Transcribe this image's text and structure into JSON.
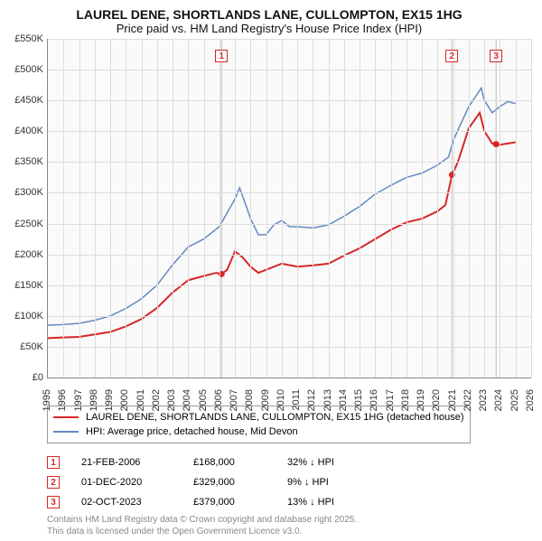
{
  "title": {
    "line1": "LAUREL DENE, SHORTLANDS LANE, CULLOMPTON, EX15 1HG",
    "line2": "Price paid vs. HM Land Registry's House Price Index (HPI)",
    "fontsize_line1": 14,
    "fontsize_line2": 13
  },
  "chart": {
    "type": "line",
    "background_color": "#fafafa",
    "grid_color": "#dddddd",
    "axis_color": "#888888",
    "xlim": [
      1995,
      2026
    ],
    "ylim": [
      0,
      550
    ],
    "x_ticks": [
      1995,
      1996,
      1997,
      1998,
      1999,
      2000,
      2001,
      2002,
      2003,
      2004,
      2005,
      2006,
      2007,
      2008,
      2009,
      2010,
      2011,
      2012,
      2013,
      2014,
      2015,
      2016,
      2017,
      2018,
      2019,
      2020,
      2021,
      2022,
      2023,
      2024,
      2025,
      2026
    ],
    "y_ticks": [
      0,
      50,
      100,
      150,
      200,
      250,
      300,
      350,
      400,
      450,
      500,
      550
    ],
    "y_tick_labels": [
      "£0",
      "£50K",
      "£100K",
      "£150K",
      "£200K",
      "£250K",
      "£300K",
      "£350K",
      "£400K",
      "£450K",
      "£500K",
      "£550K"
    ],
    "label_fontsize": 11,
    "series": [
      {
        "name": "price_paid",
        "label": "LAUREL DENE, SHORTLANDS LANE, CULLOMPTON, EX15 1HG (detached house)",
        "color": "#d62728",
        "line_width": 2,
        "points": [
          [
            1995,
            64
          ],
          [
            1996,
            65
          ],
          [
            1997,
            66
          ],
          [
            1998,
            70
          ],
          [
            1999,
            74
          ],
          [
            2000,
            83
          ],
          [
            2001,
            95
          ],
          [
            2002,
            113
          ],
          [
            2003,
            138
          ],
          [
            2004,
            158
          ],
          [
            2005,
            165
          ],
          [
            2005.8,
            170
          ],
          [
            2006.14,
            168
          ],
          [
            2006.5,
            175
          ],
          [
            2007,
            205
          ],
          [
            2007.5,
            195
          ],
          [
            2008,
            180
          ],
          [
            2008.5,
            170
          ],
          [
            2009,
            175
          ],
          [
            2010,
            185
          ],
          [
            2011,
            180
          ],
          [
            2012,
            182
          ],
          [
            2013,
            185
          ],
          [
            2014,
            198
          ],
          [
            2015,
            210
          ],
          [
            2016,
            225
          ],
          [
            2017,
            240
          ],
          [
            2018,
            252
          ],
          [
            2019,
            258
          ],
          [
            2020,
            270
          ],
          [
            2020.5,
            280
          ],
          [
            2020.92,
            329
          ],
          [
            2021.3,
            350
          ],
          [
            2022,
            405
          ],
          [
            2022.7,
            430
          ],
          [
            2023,
            400
          ],
          [
            2023.5,
            380
          ],
          [
            2023.75,
            379
          ],
          [
            2024,
            378
          ],
          [
            2024.5,
            380
          ],
          [
            2025,
            382
          ]
        ]
      },
      {
        "name": "hpi",
        "label": "HPI: Average price, detached house, Mid Devon",
        "color": "#6588c2",
        "line_width": 1.5,
        "points": [
          [
            1995,
            85
          ],
          [
            1996,
            86
          ],
          [
            1997,
            88
          ],
          [
            1998,
            93
          ],
          [
            1999,
            100
          ],
          [
            2000,
            112
          ],
          [
            2001,
            128
          ],
          [
            2002,
            150
          ],
          [
            2003,
            183
          ],
          [
            2004,
            212
          ],
          [
            2005,
            225
          ],
          [
            2006,
            245
          ],
          [
            2007,
            290
          ],
          [
            2007.3,
            308
          ],
          [
            2007.7,
            280
          ],
          [
            2008,
            258
          ],
          [
            2008.5,
            232
          ],
          [
            2009,
            232
          ],
          [
            2009.5,
            248
          ],
          [
            2010,
            255
          ],
          [
            2010.5,
            245
          ],
          [
            2011,
            245
          ],
          [
            2012,
            243
          ],
          [
            2013,
            248
          ],
          [
            2014,
            262
          ],
          [
            2015,
            278
          ],
          [
            2016,
            298
          ],
          [
            2017,
            312
          ],
          [
            2018,
            325
          ],
          [
            2019,
            332
          ],
          [
            2020,
            345
          ],
          [
            2020.7,
            358
          ],
          [
            2021,
            385
          ],
          [
            2022,
            440
          ],
          [
            2022.8,
            470
          ],
          [
            2023,
            450
          ],
          [
            2023.5,
            430
          ],
          [
            2024,
            440
          ],
          [
            2024.5,
            448
          ],
          [
            2025,
            445
          ]
        ]
      }
    ],
    "transaction_markers": [
      {
        "num": "1",
        "x": 2006.14,
        "y_top": 12,
        "dot_y": 168
      },
      {
        "num": "2",
        "x": 2020.92,
        "y_top": 12,
        "dot_y": 329
      },
      {
        "num": "3",
        "x": 2023.75,
        "y_top": 12,
        "dot_y": 379
      }
    ]
  },
  "legend": {
    "border_color": "#999999",
    "fontsize": 11
  },
  "transactions": {
    "fontsize": 11,
    "rows": [
      {
        "num": "1",
        "date": "21-FEB-2006",
        "price": "£168,000",
        "diff": "32% ↓ HPI"
      },
      {
        "num": "2",
        "date": "01-DEC-2020",
        "price": "£329,000",
        "diff": "9% ↓ HPI"
      },
      {
        "num": "3",
        "date": "02-OCT-2023",
        "price": "£379,000",
        "diff": "13% ↓ HPI"
      }
    ]
  },
  "footnote": {
    "line1": "Contains HM Land Registry data © Crown copyright and database right 2025.",
    "line2": "This data is licensed under the Open Government Licence v3.0.",
    "color": "#888888",
    "fontsize": 10
  }
}
